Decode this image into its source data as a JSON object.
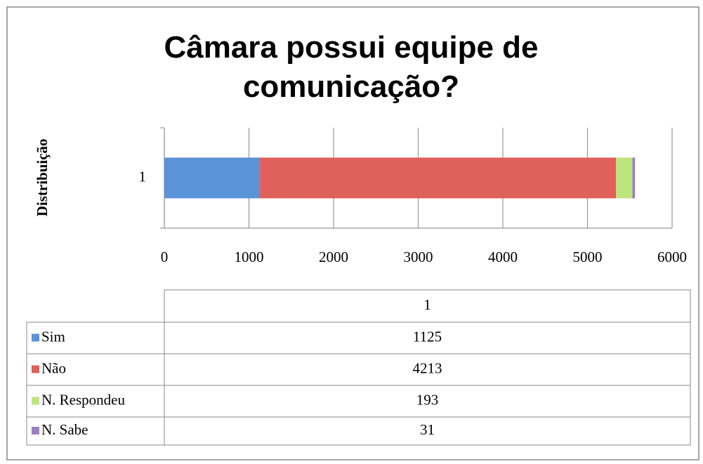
{
  "chart_data": {
    "type": "stacked_bar_horizontal",
    "title": "Câmara possui equipe de comunicação?",
    "y_label": "Distribuição",
    "categories": [
      "1"
    ],
    "series": [
      {
        "name": "Sim",
        "color": "#5b93d8",
        "values": [
          1125
        ]
      },
      {
        "name": "Não",
        "color": "#e0605a",
        "values": [
          4213
        ]
      },
      {
        "name": "N. Respondeu",
        "color": "#bde57e",
        "values": [
          193
        ]
      },
      {
        "name": "N. Sabe",
        "color": "#9b7fc6",
        "values": [
          31
        ]
      }
    ],
    "xlim": [
      0,
      6000
    ],
    "xticks": [
      0,
      1000,
      2000,
      3000,
      4000,
      5000,
      6000
    ],
    "grid": true,
    "data_table": true
  }
}
